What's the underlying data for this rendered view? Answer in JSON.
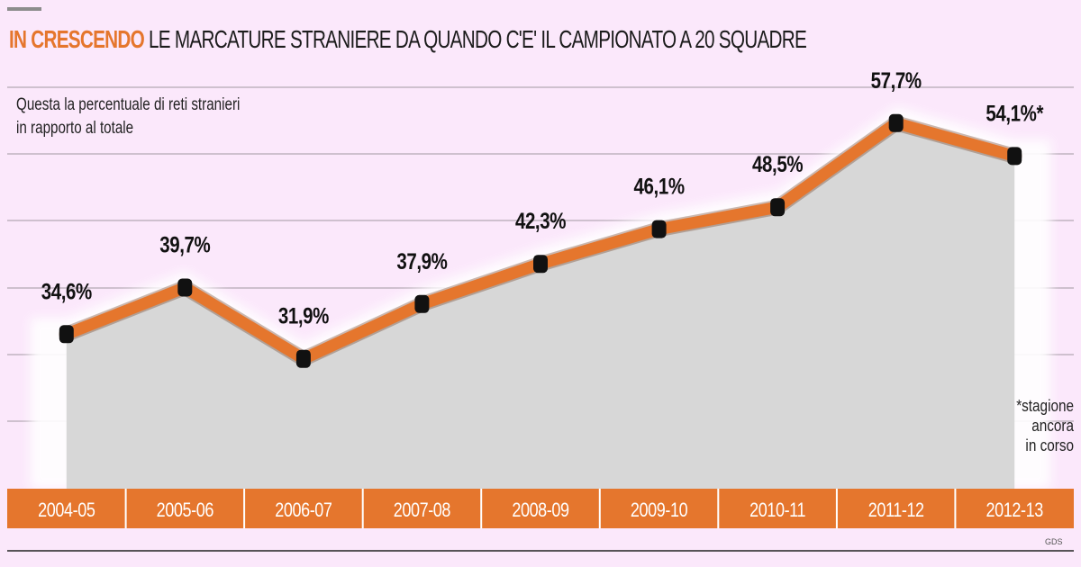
{
  "header": {
    "title_highlight": "IN CRESCENDO",
    "title_rest": " LE MARCATURE STRANIERE DA QUANDO C'E' IL CAMPIONATO A 20 SQUADRE",
    "subtitle_line1": "Questa la percentuale di reti stranieri",
    "subtitle_line2": "in rapporto al totale"
  },
  "note": {
    "line1": "*stagione",
    "line2": "ancora",
    "line3": "in corso"
  },
  "source": "GDS",
  "colors": {
    "background": "#fbe8fb",
    "line": "#e5762d",
    "area": "#d7d7d7",
    "axis_band": "#e5762d",
    "marker": "#111111",
    "grid": "#c0b2c0"
  },
  "chart_data": {
    "type": "line",
    "categories": [
      "2004-05",
      "2005-06",
      "2006-07",
      "2007-08",
      "2008-09",
      "2009-10",
      "2010-11",
      "2011-12",
      "2012-13"
    ],
    "values": [
      34.6,
      39.7,
      31.9,
      37.9,
      42.3,
      46.1,
      48.5,
      57.7,
      54.1
    ],
    "labels": [
      "34,6%",
      "39,7%",
      "31,9%",
      "37,9%",
      "42,3%",
      "46,1%",
      "48,5%",
      "57,7%",
      "54,1%*"
    ],
    "unit": "%",
    "grid": true,
    "area_fill": true
  }
}
